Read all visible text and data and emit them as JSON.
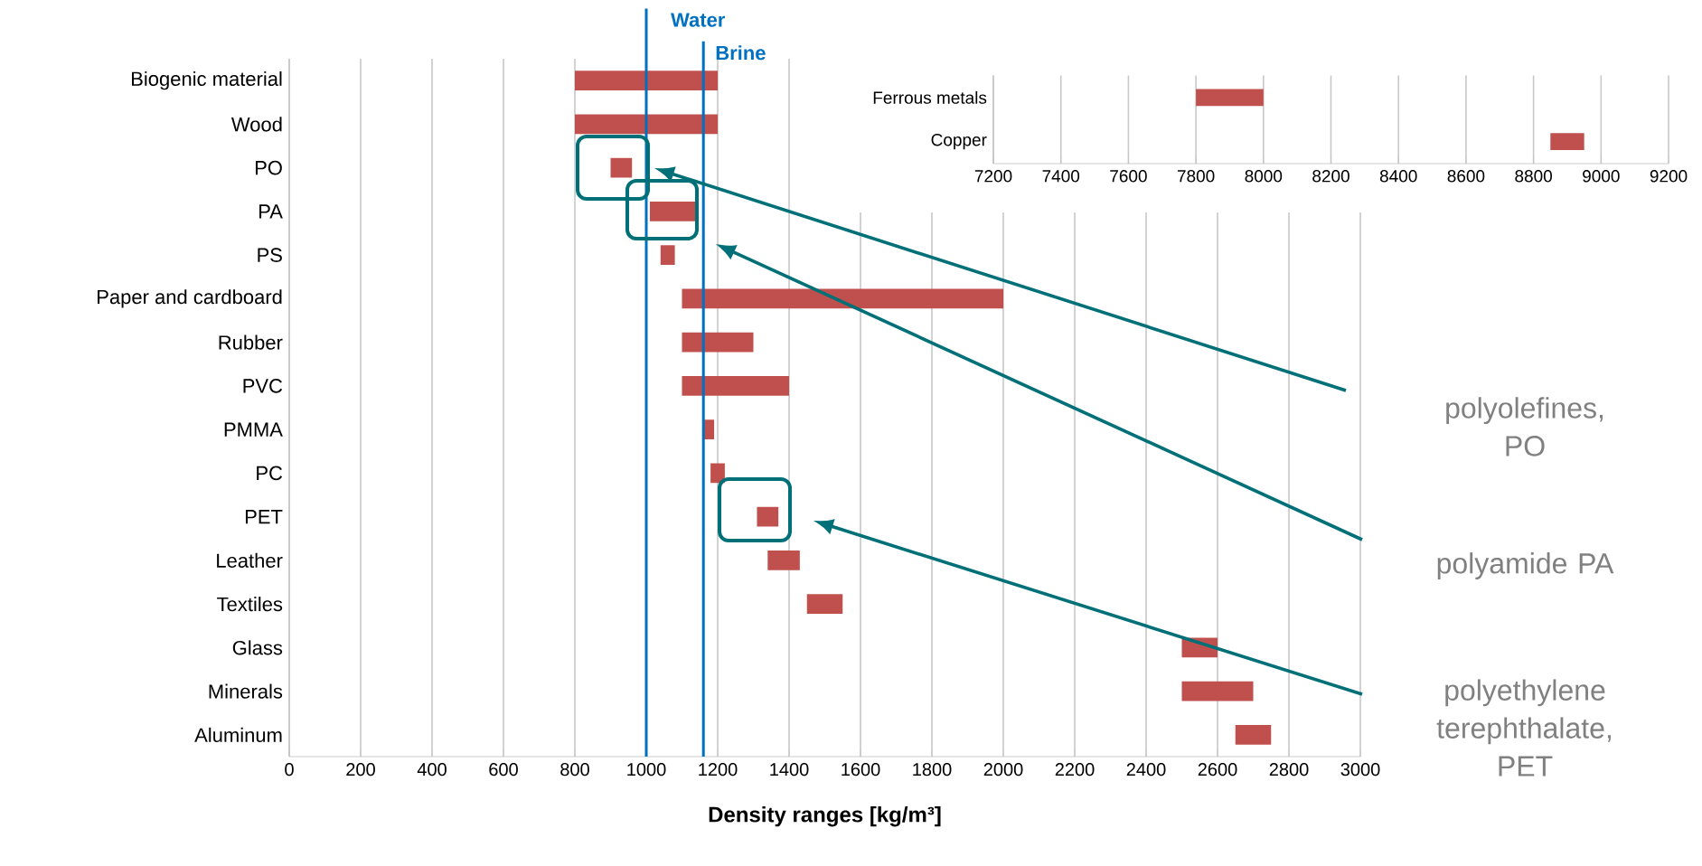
{
  "chart_data": [
    {
      "type": "bar",
      "orientation": "horizontal",
      "xlabel": "Density ranges [kg/m³]",
      "categories": [
        "Biogenic material",
        "Wood",
        "PO",
        "PA",
        "PS",
        "Paper and cardboard",
        "Rubber",
        "PVC",
        "PMMA",
        "PC",
        "PET",
        "Leather",
        "Textiles",
        "Glass",
        "Minerals",
        "Aluminum"
      ],
      "base": [
        800,
        800,
        900,
        1010,
        1040,
        1100,
        1100,
        1100,
        1160,
        1180,
        1310,
        1340,
        1450,
        2500,
        2500,
        2650
      ],
      "values": [
        400,
        400,
        60,
        130,
        40,
        900,
        200,
        300,
        30,
        40,
        60,
        90,
        100,
        100,
        200,
        100
      ],
      "color": "#c0504d",
      "xlim": [
        0,
        3000
      ],
      "xticks": [
        0,
        200,
        400,
        600,
        800,
        1000,
        1200,
        1400,
        1600,
        1800,
        2000,
        2200,
        2400,
        2600,
        2800,
        3000
      ],
      "grid": "x",
      "ref_lines": [
        {
          "axis": "x",
          "value": 1000,
          "label": "Water",
          "color": "#0070c0"
        },
        {
          "axis": "x",
          "value": 1160,
          "label": "Brine",
          "color": "#0070c0"
        }
      ],
      "annotations": [
        "polyolefines, PO",
        "polyamide PA",
        "polyethylene terephthalate, PET"
      ]
    },
    {
      "type": "bar",
      "orientation": "horizontal",
      "categories": [
        "Ferrous metals",
        "Copper"
      ],
      "base": [
        7800,
        8850
      ],
      "values": [
        200,
        100
      ],
      "color": "#c0504d",
      "xlim": [
        7200,
        9200
      ],
      "xticks": [
        7200,
        7400,
        7600,
        7800,
        8000,
        8200,
        8400,
        8600,
        8800,
        9000,
        9200
      ],
      "grid": "x"
    }
  ]
}
